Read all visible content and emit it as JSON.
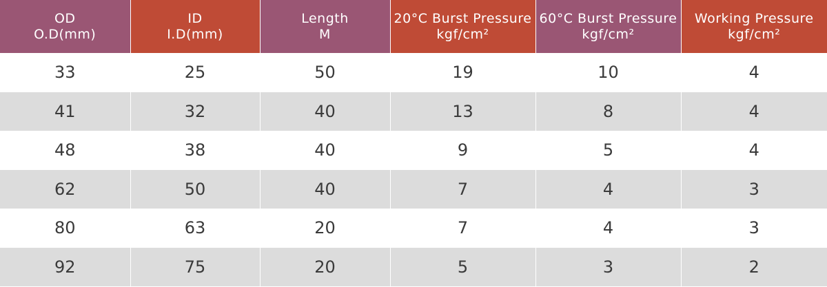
{
  "table": {
    "headers": [
      {
        "line1": "OD",
        "line2": "O.D(mm)",
        "color": "#9a5674"
      },
      {
        "line1": "ID",
        "line2": "I.D(mm)",
        "color": "#bf4b36"
      },
      {
        "line1": "Length",
        "line2": "M",
        "color": "#9a5674"
      },
      {
        "line1": "20°C Burst Pressure",
        "line2": "kgf/cm²",
        "color": "#bf4b36"
      },
      {
        "line1": "60°C Burst Pressure",
        "line2": "kgf/cm²",
        "color": "#9a5674"
      },
      {
        "line1": "Working Pressure",
        "line2": "kgf/cm²",
        "color": "#bf4b36"
      }
    ],
    "rows": [
      [
        "33",
        "25",
        "50",
        "19",
        "10",
        "4"
      ],
      [
        "41",
        "32",
        "40",
        "13",
        "8",
        "4"
      ],
      [
        "48",
        "38",
        "40",
        "9",
        "5",
        "4"
      ],
      [
        "62",
        "50",
        "40",
        "7",
        "4",
        "3"
      ],
      [
        "80",
        "63",
        "20",
        "7",
        "4",
        "3"
      ],
      [
        "92",
        "75",
        "20",
        "5",
        "3",
        "2"
      ]
    ],
    "row_colors": {
      "odd": "#ffffff",
      "even": "#dcdcdc"
    }
  }
}
